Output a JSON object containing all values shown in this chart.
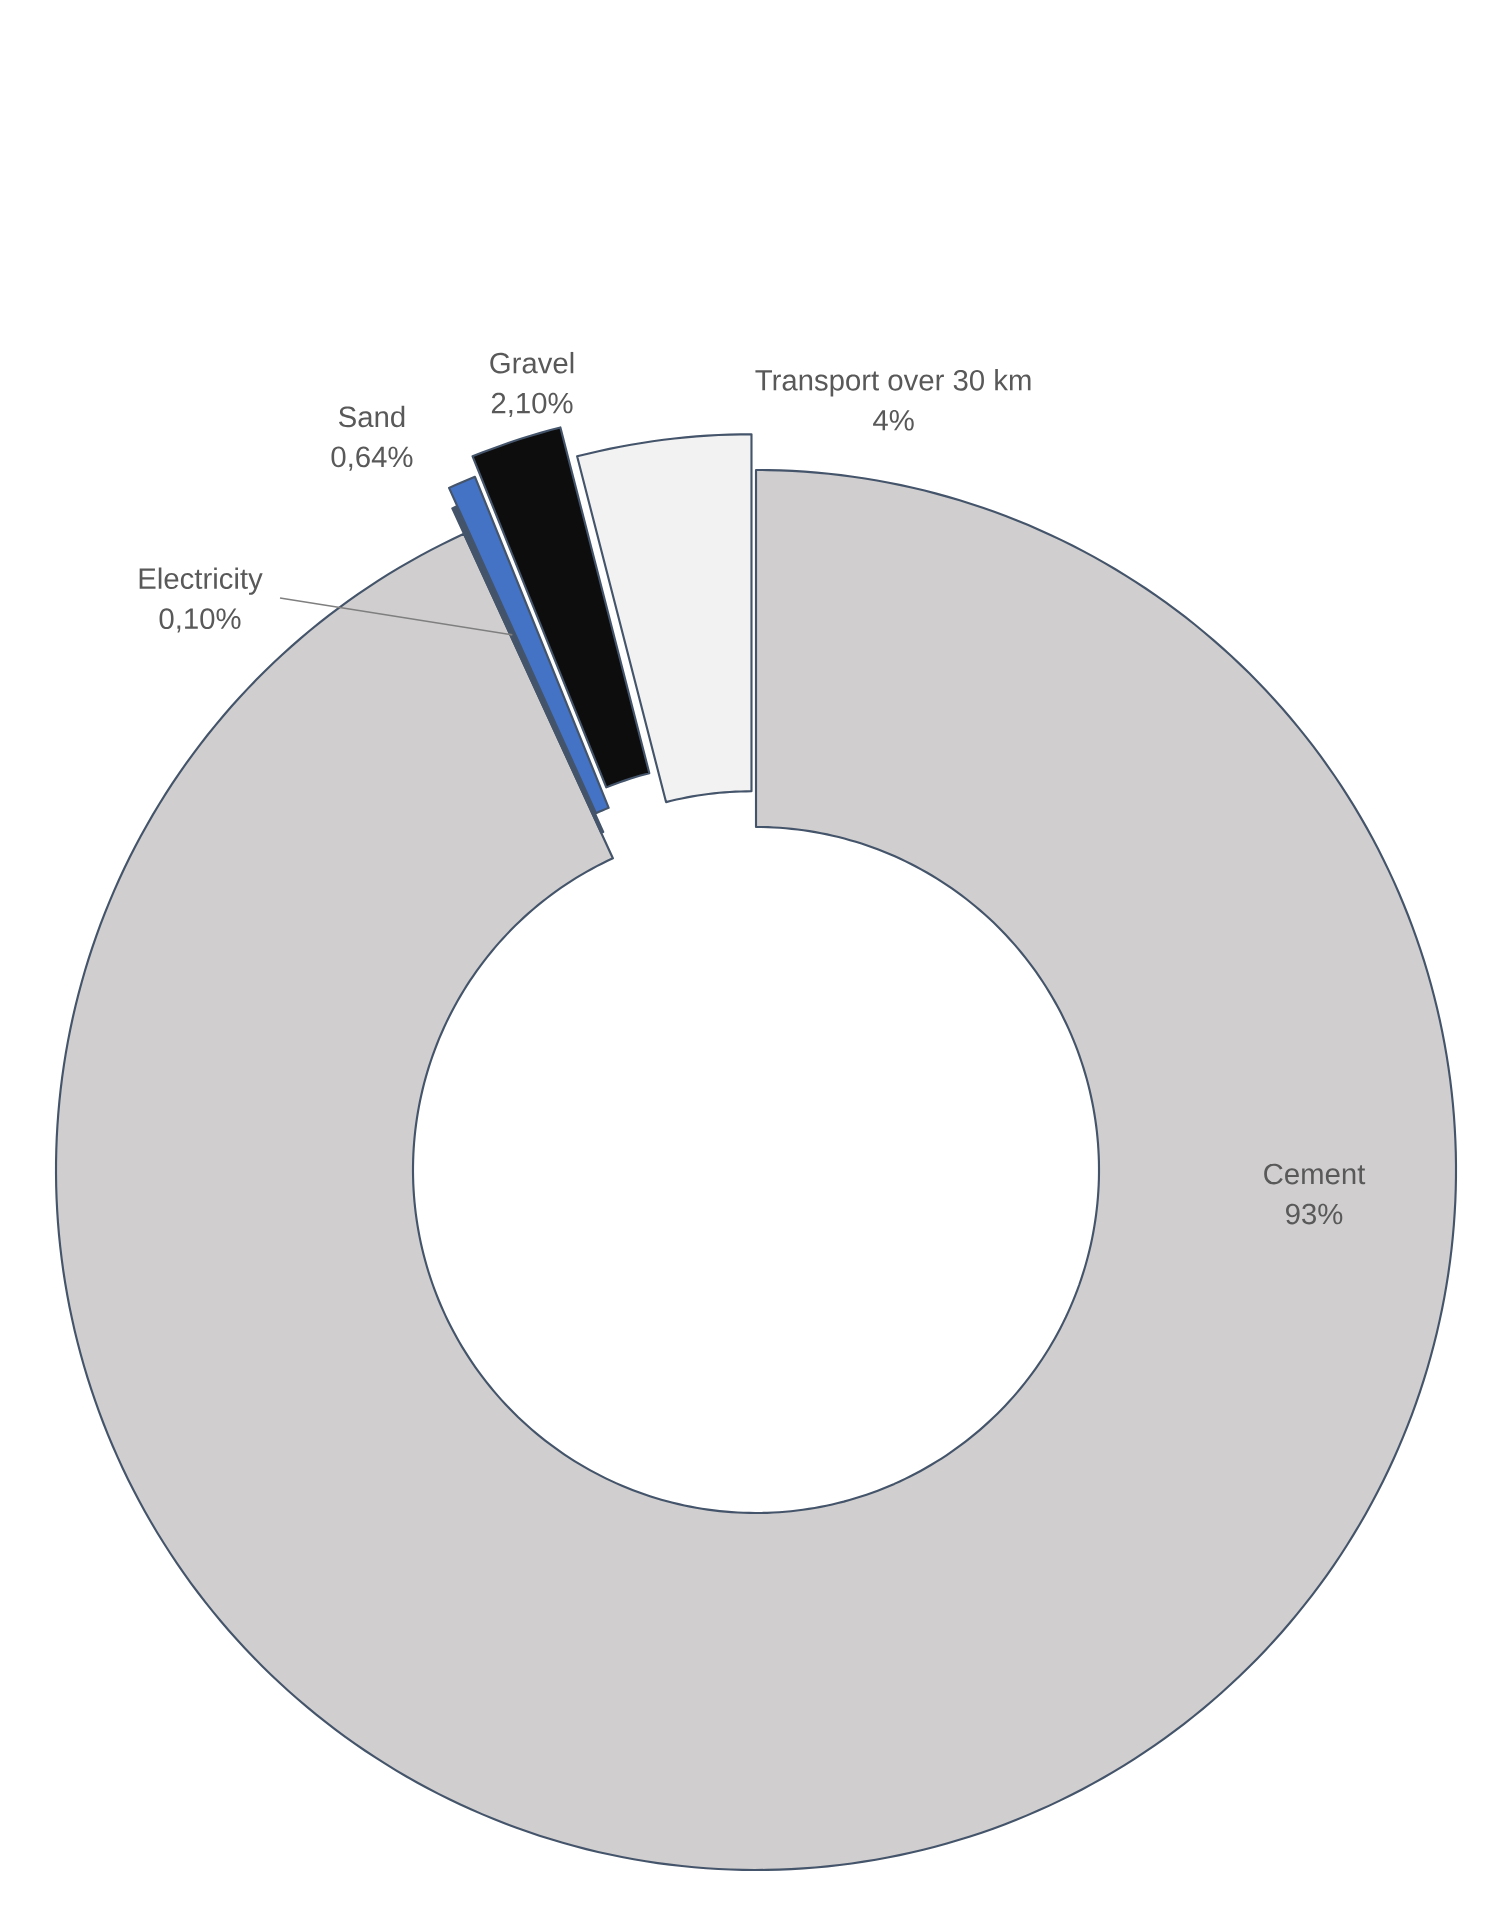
{
  "chart_data": {
    "type": "donut",
    "categories": [
      "Cement",
      "Electricity",
      "Sand",
      "Gravel",
      "Transport over 30 km"
    ],
    "values": [
      93,
      0.1,
      0.64,
      2.1,
      4
    ],
    "value_labels": [
      "93%",
      "0,10%",
      "0,64%",
      "2,10%",
      "4%"
    ],
    "colors": [
      "#d0cece",
      "#44546a",
      "#4472c4",
      "#0d0d0d",
      "#f2f2f2"
    ]
  }
}
